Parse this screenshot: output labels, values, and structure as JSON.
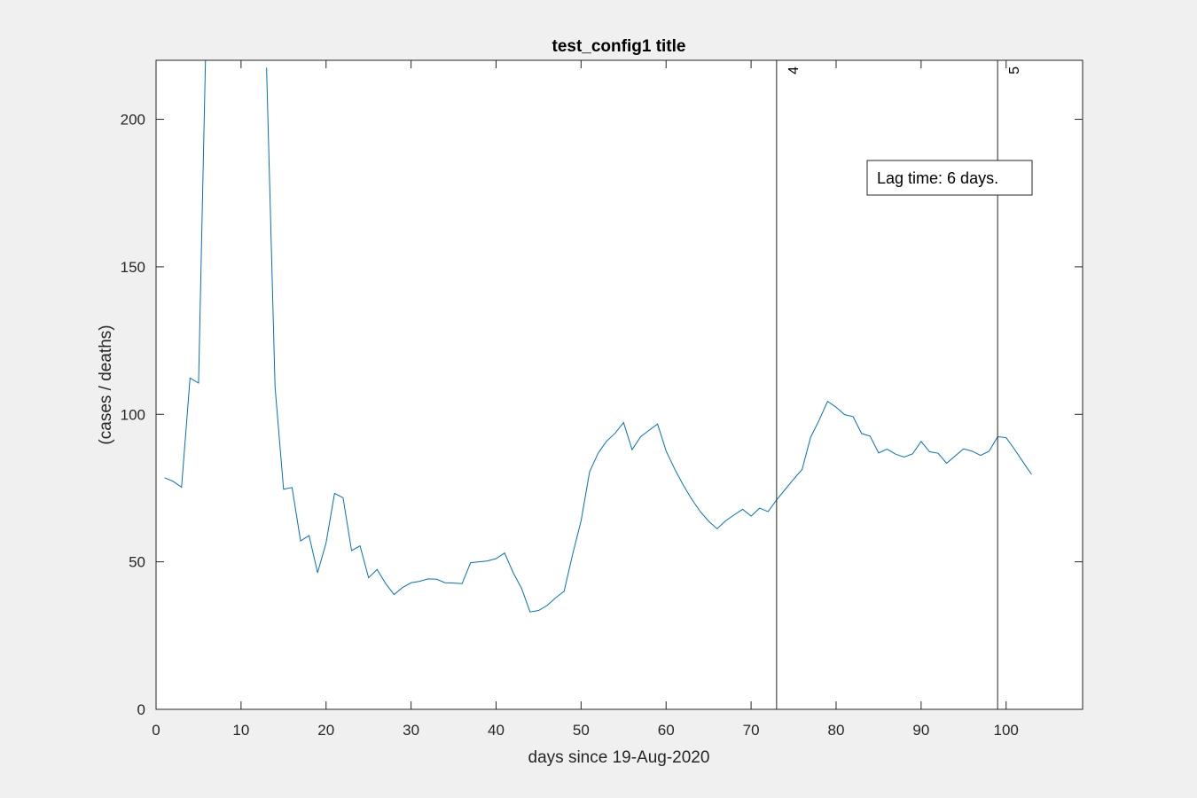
{
  "chart_data": {
    "type": "line",
    "title": "test_config1 title",
    "xlabel": "days since 19-Aug-2020",
    "ylabel": "(cases / deaths)",
    "xlim": [
      0,
      109
    ],
    "ylim": [
      0,
      220
    ],
    "xticks": [
      0,
      10,
      20,
      30,
      40,
      50,
      60,
      70,
      80,
      90,
      100
    ],
    "yticks": [
      0,
      50,
      100,
      150,
      200
    ],
    "grid": false,
    "series_color": "#0072bd",
    "series": [
      {
        "x": [
          1,
          2,
          3,
          4,
          5,
          6,
          7,
          8,
          9,
          10,
          11,
          12,
          13,
          14,
          15,
          16,
          17,
          18,
          19,
          20,
          21,
          22,
          23,
          24,
          25,
          26,
          27,
          28,
          29,
          30,
          31,
          32,
          33,
          34,
          35,
          36,
          37,
          38,
          39,
          40,
          41,
          42,
          43,
          44,
          45,
          46,
          47,
          48,
          49,
          50,
          51,
          52,
          53,
          54,
          55,
          56,
          57,
          58,
          59,
          60,
          61,
          62,
          63,
          64,
          65,
          66,
          67,
          68,
          69,
          70,
          71,
          72,
          73,
          74,
          75,
          76,
          77,
          78,
          79,
          80,
          81,
          82,
          83,
          84,
          85,
          86,
          87,
          88,
          89,
          90,
          91,
          92,
          93,
          94,
          95,
          96,
          97,
          98,
          99,
          100,
          101,
          102,
          103
        ],
        "y": [
          78.5,
          77.3,
          75.3,
          112.3,
          110.6,
          245,
          null,
          null,
          null,
          null,
          null,
          null,
          217.5,
          109.2,
          74.6,
          75.2,
          57.1,
          58.9,
          46.3,
          56.4,
          73.2,
          71.7,
          53.8,
          55.4,
          44.6,
          47.4,
          42.7,
          38.9,
          41.3,
          42.9,
          43.4,
          44.2,
          44.1,
          42.9,
          42.8,
          42.6,
          49.7,
          50.0,
          50.3,
          51.1,
          53.0,
          46.4,
          41.0,
          33.0,
          33.5,
          35.2,
          37.8,
          40.0,
          52.5,
          63.9,
          80.5,
          86.8,
          90.9,
          93.6,
          97.2,
          88.0,
          92.4,
          94.6,
          96.7,
          87.6,
          81.5,
          76.1,
          71.3,
          67.1,
          63.8,
          61.2,
          63.9,
          65.9,
          67.8,
          65.5,
          68.2,
          67.0,
          71.0,
          74.5,
          78.0,
          81.3,
          92.2,
          98.0,
          104.4,
          102.4,
          99.9,
          99.2,
          93.5,
          92.6,
          86.9,
          88.2,
          86.5,
          85.5,
          86.6,
          90.8,
          87.3,
          86.8,
          83.4,
          85.9,
          88.3,
          87.5,
          86.1,
          87.5,
          92.4,
          92.1,
          88.1,
          83.8,
          79.6
        ]
      }
    ],
    "vlines": [
      {
        "x": 73,
        "label": "4"
      },
      {
        "x": 99,
        "label": "5"
      }
    ],
    "annotation": "Lag time: 6 days."
  }
}
